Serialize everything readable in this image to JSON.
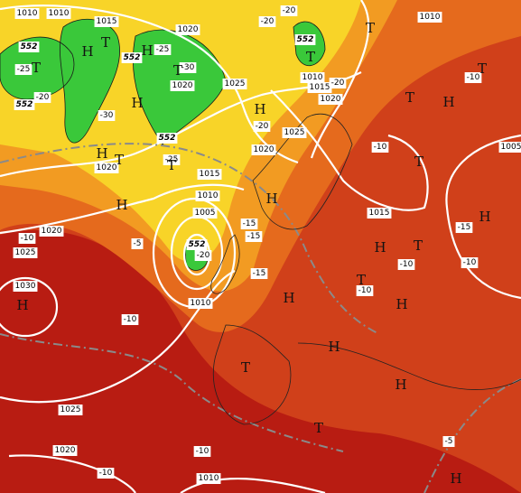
{
  "map": {
    "pressure_labels": [
      1010,
      1010,
      1015,
      1020,
      1020,
      1025,
      1020,
      1020,
      1025,
      1015,
      1010,
      1005,
      1010,
      1010,
      1015,
      1020,
      1010,
      1005,
      1015,
      1020,
      1025,
      1030,
      1025,
      1020,
      1010
    ],
    "temperature_labels": [
      -20,
      -20,
      -25,
      -20,
      -30,
      -30,
      -25,
      -20,
      -25,
      -10,
      -15,
      -15,
      -20,
      -15,
      -5,
      -10,
      -10,
      -15,
      -10,
      -10,
      -10,
      -10,
      -10,
      -10,
      -5,
      -20
    ],
    "height_labels": [
      552,
      552,
      552,
      552,
      552,
      552
    ],
    "centers": [
      "H",
      "T",
      "T",
      "H",
      "T",
      "H",
      "H",
      "T",
      "T",
      "T",
      "T",
      "H",
      "H",
      "T",
      "H",
      "T",
      "T",
      "H",
      "H",
      "H",
      "T",
      "T",
      "H",
      "H",
      "H",
      "T",
      "H",
      "T",
      "H",
      "H"
    ]
  }
}
